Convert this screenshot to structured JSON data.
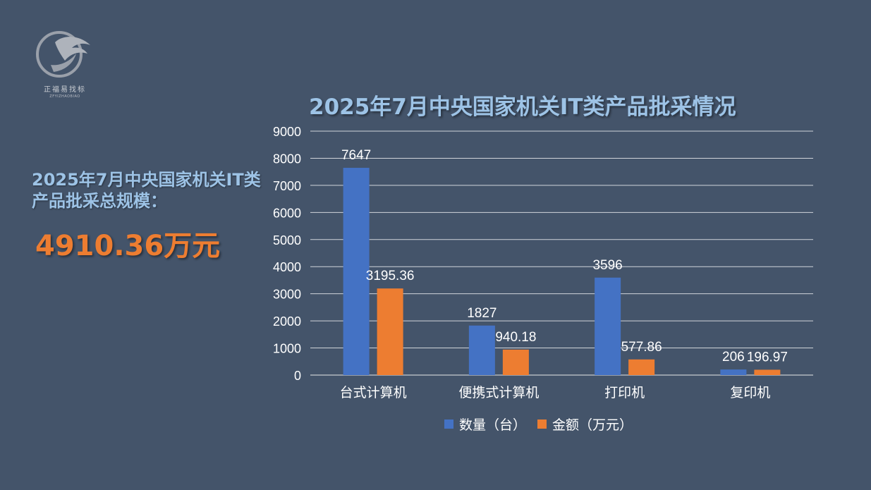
{
  "logo": {
    "icon": "eagle-circle-logo-icon",
    "cn_text": "正福易找标",
    "en_text": "ZFYIZHAOBIAO"
  },
  "summary": {
    "label": "2025年7月中央国家机关IT类产品批采总规模：",
    "total": "4910.36万元"
  },
  "chart_data": {
    "type": "bar",
    "title": "2025年7月中央国家机关IT类产品批采情况",
    "categories": [
      "台式计算机",
      "便携式计算机",
      "打印机",
      "复印机"
    ],
    "series": [
      {
        "name": "数量（台）",
        "values": [
          7647,
          1827,
          3596,
          206
        ],
        "labels": [
          "7647",
          "1827",
          "3596",
          "206"
        ],
        "color": "#4472c4"
      },
      {
        "name": "金额（万元）",
        "values": [
          3195.36,
          940.18,
          577.86,
          196.97
        ],
        "labels": [
          "3195.36",
          "940.18",
          "577.86",
          "196.97"
        ],
        "color": "#ed7d31"
      }
    ],
    "yticks": [
      "0",
      "1000",
      "2000",
      "3000",
      "4000",
      "5000",
      "6000",
      "7000",
      "8000",
      "9000"
    ],
    "ylim": [
      0,
      9000
    ],
    "grid": true,
    "legend_position": "bottom"
  }
}
